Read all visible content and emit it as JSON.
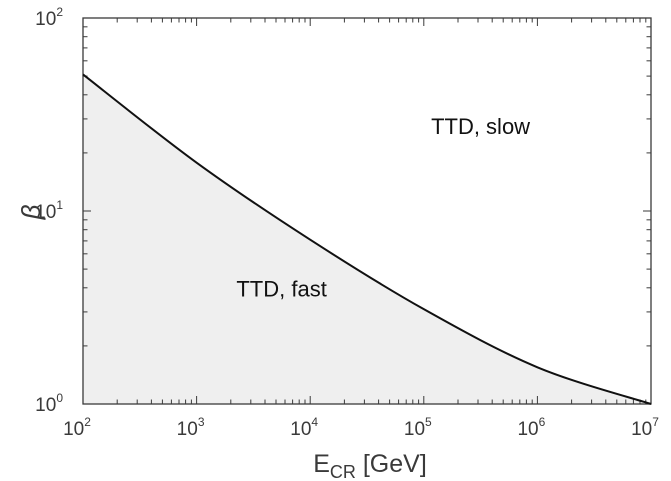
{
  "chart_data": {
    "type": "area",
    "title": "",
    "xlabel": {
      "main": "E",
      "sub": "CR",
      "rest": " [GeV]"
    },
    "ylabel": "β",
    "x_scale": "log",
    "y_scale": "log",
    "xlim": [
      100,
      10000000
    ],
    "ylim": [
      1,
      100
    ],
    "x_ticks": [
      {
        "base": "10",
        "exp": "2"
      },
      {
        "base": "10",
        "exp": "3"
      },
      {
        "base": "10",
        "exp": "4"
      },
      {
        "base": "10",
        "exp": "5"
      },
      {
        "base": "10",
        "exp": "6"
      },
      {
        "base": "10",
        "exp": "7"
      }
    ],
    "y_ticks": [
      {
        "base": "10",
        "exp": "0"
      },
      {
        "base": "10",
        "exp": "1"
      },
      {
        "base": "10",
        "exp": "2"
      }
    ],
    "grid": false,
    "series": [
      {
        "x": [
          100,
          1000,
          10000,
          100000,
          1000000,
          10000000
        ],
        "y": [
          51,
          17.8,
          7.1,
          3.1,
          1.55,
          1.0
        ]
      }
    ],
    "fill_below": true,
    "annotations": [
      {
        "text": "TTD, slow",
        "x": 316000,
        "y": 25
      },
      {
        "text": "TTD, fast",
        "x": 5600,
        "y": 3.6
      }
    ],
    "colors": {
      "line": "#111111",
      "fill": "#efefef",
      "axes": "#3a3a3a"
    }
  }
}
